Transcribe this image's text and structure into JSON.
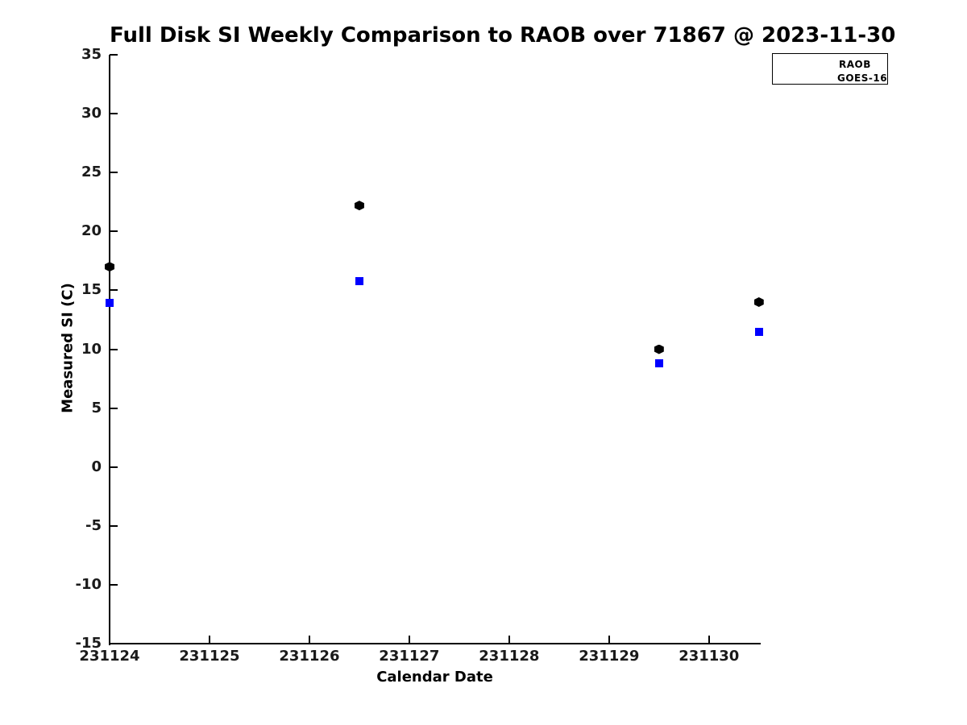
{
  "chart_data": {
    "type": "scatter",
    "title": "Full Disk SI Weekly Comparison to RAOB over 71867 @ 2023-11-30",
    "xlabel": "Calendar Date",
    "ylabel": "Measured SI (C)",
    "xlim": [
      231124,
      231130.51
    ],
    "ylim": [
      -15,
      35
    ],
    "x_ticks": [
      231124,
      231125,
      231126,
      231127,
      231128,
      231129,
      231130
    ],
    "y_ticks": [
      35,
      30,
      25,
      20,
      15,
      10,
      5,
      0,
      -5,
      -10,
      -15
    ],
    "grid": false,
    "legend_position": "top-right",
    "colors": {
      "raob_point": "#000000",
      "goes16_point": "#0000ff",
      "legend_marker": "#0000ff",
      "axis": "#000000"
    },
    "series": [
      {
        "name": "RAOB",
        "marker": "hexagon",
        "color": "#000000",
        "points": [
          {
            "x": 231124.0,
            "y": 17.0
          },
          {
            "x": 231126.5,
            "y": 22.2
          },
          {
            "x": 231129.5,
            "y": 10.0
          },
          {
            "x": 231130.5,
            "y": 14.0
          }
        ]
      },
      {
        "name": "GOES-16",
        "marker": "square",
        "color": "#0000ff",
        "points": [
          {
            "x": 231124.0,
            "y": 13.9
          },
          {
            "x": 231126.5,
            "y": 15.8
          },
          {
            "x": 231129.5,
            "y": 8.8
          },
          {
            "x": 231130.5,
            "y": 11.5
          }
        ]
      }
    ]
  }
}
